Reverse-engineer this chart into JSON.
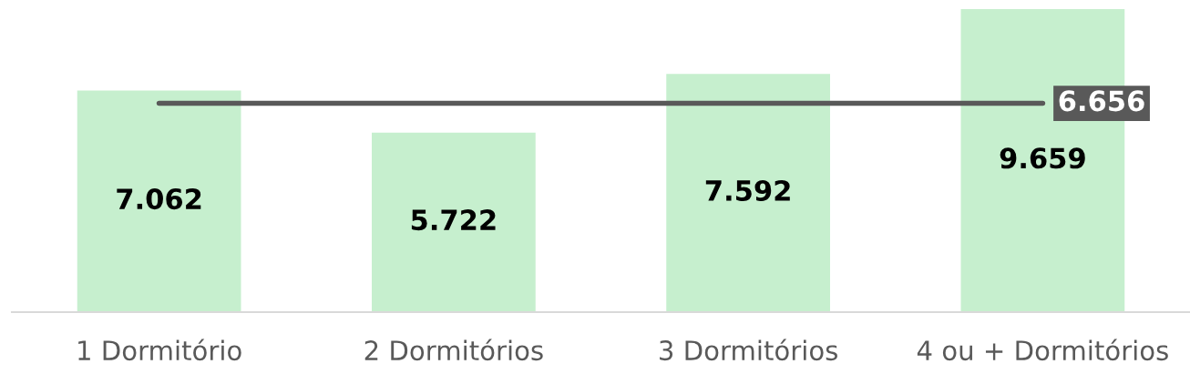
{
  "chart_data": {
    "type": "bar",
    "categories": [
      "1 Dormitório",
      "2 Dormitórios",
      "3 Dormitórios",
      "4 ou + Dormitórios"
    ],
    "values": [
      7.062,
      5.722,
      7.592,
      9.659
    ],
    "value_labels": [
      "7.062",
      "5.722",
      "7.592",
      "9.659"
    ],
    "color": "#c6efce",
    "ref_lines": [
      {
        "axis": "y",
        "value": 6.656,
        "label": "6.656",
        "color": "#595959",
        "line_style": "solid"
      }
    ],
    "grid": false,
    "legend": false
  }
}
